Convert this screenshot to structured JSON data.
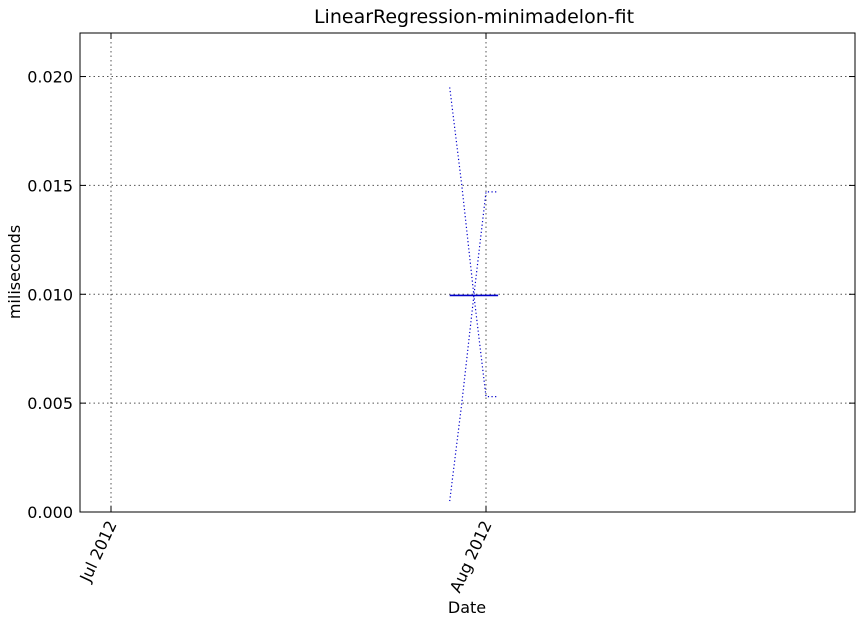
{
  "chart_data": {
    "type": "line",
    "title": "LinearRegression-minimadelon-fit",
    "xlabel": "Date",
    "ylabel": "miliseconds",
    "x_axis_type": "date",
    "xlim": [
      "2012-07-01",
      "2012-08-31"
    ],
    "ylim": [
      0,
      0.022
    ],
    "grid": true,
    "x_ticks": [
      {
        "date": "2012-07-01",
        "label": "Jul 2012"
      },
      {
        "date": "2012-08-01",
        "label": "Aug 2012"
      }
    ],
    "y_ticks": [
      {
        "value": 0.0,
        "label": "0.000"
      },
      {
        "value": 0.005,
        "label": "0.005"
      },
      {
        "value": 0.01,
        "label": "0.010"
      },
      {
        "value": 0.015,
        "label": "0.015"
      },
      {
        "value": 0.02,
        "label": "0.020"
      }
    ],
    "series": [
      {
        "style": "solid",
        "color": "#0000cc",
        "x": [
          "2012-07-29",
          "2012-08-01",
          "2012-08-02"
        ],
        "y": [
          0.00995,
          0.00995,
          0.00995
        ]
      },
      {
        "style": "dotted",
        "color": "#0000cc",
        "x": [
          "2012-07-29",
          "2012-07-30",
          "2012-07-31",
          "2012-08-01",
          "2012-08-02"
        ],
        "y": [
          0.0195,
          0.015,
          0.00995,
          0.0053,
          0.0053
        ]
      },
      {
        "style": "dotted",
        "color": "#0000cc",
        "x": [
          "2012-07-29",
          "2012-07-30",
          "2012-07-31",
          "2012-08-01",
          "2012-08-02"
        ],
        "y": [
          0.0005,
          0.005,
          0.00995,
          0.0147,
          0.0147
        ]
      }
    ]
  }
}
